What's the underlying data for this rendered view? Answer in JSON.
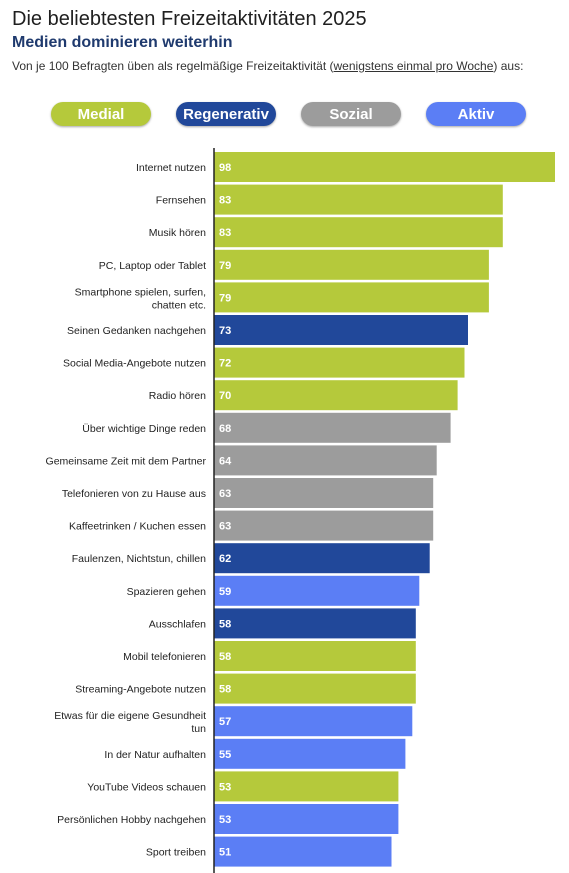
{
  "title": "Die beliebtesten Freizeitaktivitäten 2025",
  "subtitle": "Medien dominieren weiterhin",
  "intro": {
    "text_before": "Von je 100 Befragten üben als regelmäßige Freizeitaktivität (",
    "underlined": "wenigstens einmal pro Woche",
    "text_after": ") aus:"
  },
  "legend": [
    {
      "key": "medial",
      "label": "Medial",
      "color": "#b5c93b"
    },
    {
      "key": "regenerativ",
      "label": "Regenerativ",
      "color": "#21489a"
    },
    {
      "key": "sozial",
      "label": "Sozial",
      "color": "#9c9c9c"
    },
    {
      "key": "aktiv",
      "label": "Aktiv",
      "color": "#5b7ef5"
    }
  ],
  "chart_data": {
    "type": "bar",
    "orientation": "horizontal",
    "xlim": [
      0,
      98
    ],
    "categories": [
      "Internet nutzen",
      "Fernsehen",
      "Musik hören",
      "PC, Laptop oder Tablet",
      "Smartphone spielen, surfen, chatten etc.",
      "Seinen Gedanken nachgehen",
      "Social Media-Angebote nutzen",
      "Radio hören",
      "Über wichtige Dinge reden",
      "Gemeinsame Zeit mit dem Partner",
      "Telefonieren von zu Hause aus",
      "Kaffeetrinken / Kuchen essen",
      "Faulenzen, Nichtstun, chillen",
      "Spazieren gehen",
      "Ausschlafen",
      "Mobil telefonieren",
      "Streaming-Angebote nutzen",
      "Etwas für die eigene Gesundheit tun",
      "In der Natur aufhalten",
      "YouTube Videos schauen",
      "Persönlichen Hobby nachgehen",
      "Sport treiben"
    ],
    "values": [
      98,
      83,
      83,
      79,
      79,
      73,
      72,
      70,
      68,
      64,
      63,
      63,
      62,
      59,
      58,
      58,
      58,
      57,
      55,
      53,
      53,
      51
    ],
    "groups": [
      "medial",
      "medial",
      "medial",
      "medial",
      "medial",
      "regenerativ",
      "medial",
      "medial",
      "sozial",
      "sozial",
      "sozial",
      "sozial",
      "regenerativ",
      "aktiv",
      "regenerativ",
      "medial",
      "medial",
      "aktiv",
      "aktiv",
      "medial",
      "aktiv",
      "aktiv"
    ]
  }
}
